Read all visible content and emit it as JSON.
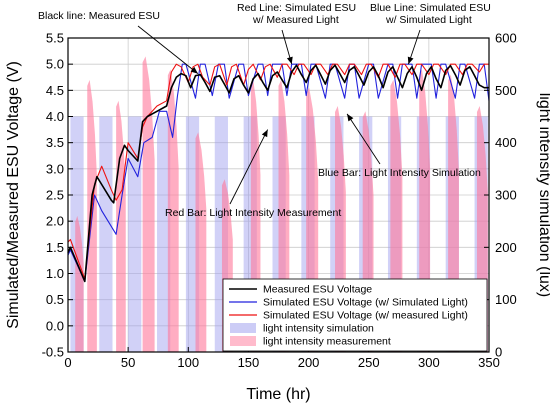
{
  "chart_data": {
    "type": "line",
    "xlabel": "Time (hr)",
    "ylabel": "Simulated/Measured ESU Voltage (V)",
    "y2label": "light intensity simulation (lux)",
    "xlim": [
      0,
      350
    ],
    "ylim": [
      -0.5,
      5.5
    ],
    "y2lim": [
      0,
      600
    ],
    "xticks": [
      0,
      50,
      100,
      150,
      200,
      250,
      300,
      350
    ],
    "yticks": [
      -0.5,
      0.0,
      0.5,
      1.0,
      1.5,
      2.0,
      2.5,
      3.0,
      3.5,
      4.0,
      4.5,
      5.0,
      5.5
    ],
    "y2ticks": [
      0,
      100,
      200,
      300,
      400,
      500,
      600
    ],
    "grid": true,
    "legend_position": "bottom-right",
    "series": [
      {
        "name": "Measured ESU Voltage",
        "color": "#000000",
        "axis": "left",
        "x": [
          0,
          2,
          14,
          20,
          24,
          28,
          36,
          38,
          43,
          47,
          50,
          58,
          62,
          66,
          74,
          82,
          86,
          90,
          94,
          98,
          102,
          106,
          110,
          114,
          118,
          122,
          126,
          130,
          134,
          138,
          142,
          146,
          150,
          154,
          158,
          162,
          166,
          170,
          174,
          178,
          182,
          186,
          190,
          194,
          198,
          202,
          206,
          210,
          214,
          218,
          222,
          226,
          230,
          234,
          238,
          242,
          246,
          250,
          254,
          258,
          262,
          266,
          270,
          274,
          278,
          282,
          286,
          290,
          294,
          298,
          302,
          306,
          310,
          314,
          318,
          322,
          326,
          330,
          334,
          338,
          342,
          346,
          350
        ],
        "y": [
          1.4,
          1.5,
          0.85,
          2.5,
          2.85,
          2.7,
          2.4,
          2.35,
          3.2,
          3.45,
          3.35,
          3.15,
          3.9,
          4.0,
          4.1,
          4.2,
          4.55,
          4.75,
          4.82,
          4.78,
          4.55,
          4.78,
          4.8,
          4.65,
          4.48,
          4.75,
          4.78,
          4.62,
          4.45,
          4.72,
          4.78,
          4.6,
          4.45,
          4.72,
          4.82,
          4.65,
          4.5,
          4.78,
          4.85,
          4.7,
          4.55,
          4.85,
          4.98,
          4.8,
          4.65,
          4.88,
          4.98,
          4.8,
          4.62,
          4.88,
          4.98,
          4.82,
          4.65,
          4.88,
          4.95,
          4.78,
          4.6,
          4.85,
          4.95,
          4.78,
          4.55,
          4.85,
          4.95,
          4.75,
          4.55,
          4.82,
          4.95,
          4.75,
          4.5,
          4.82,
          4.95,
          4.72,
          4.55,
          4.88,
          4.97,
          4.8,
          4.6,
          4.88,
          4.95,
          4.78,
          4.6,
          4.55,
          4.55
        ]
      },
      {
        "name": "Simulated ESU Voltage (w/ Simulated Light)",
        "color": "#2222dd",
        "axis": "left",
        "x": [
          0,
          2,
          14,
          22,
          28,
          40,
          45,
          50,
          58,
          63,
          70,
          76,
          82,
          87,
          91,
          95,
          98,
          106,
          110,
          114,
          120,
          125,
          130,
          134,
          142,
          146,
          150,
          158,
          162,
          166,
          170,
          178,
          182,
          186,
          194,
          198,
          202,
          206,
          214,
          218,
          222,
          230,
          234,
          238,
          242,
          250,
          254,
          258,
          266,
          270,
          274,
          278,
          286,
          290,
          294,
          302,
          306,
          310,
          314,
          322,
          326,
          330,
          338,
          342,
          346,
          350
        ],
        "y": [
          1.35,
          1.45,
          0.85,
          2.5,
          2.2,
          1.75,
          2.5,
          3.2,
          2.85,
          3.5,
          3.6,
          4.1,
          4.1,
          3.6,
          4.4,
          5.0,
          5.0,
          4.35,
          5.0,
          5.0,
          4.4,
          5.0,
          5.0,
          4.35,
          5.0,
          5.0,
          4.4,
          5.0,
          5.0,
          4.4,
          5.0,
          5.0,
          4.4,
          5.0,
          5.0,
          4.4,
          5.0,
          5.0,
          4.35,
          5.0,
          5.0,
          4.35,
          5.0,
          5.0,
          4.35,
          5.0,
          5.0,
          4.35,
          5.0,
          5.0,
          4.35,
          5.0,
          5.0,
          4.35,
          5.0,
          5.0,
          4.35,
          5.0,
          5.0,
          4.35,
          5.0,
          5.0,
          4.35,
          5.0,
          5.0,
          4.3
        ]
      },
      {
        "name": "Simulated ESU Voltage (w/ measured Light)",
        "color": "#ee1111",
        "axis": "left",
        "x": [
          0,
          2,
          14,
          22,
          28,
          36,
          40,
          45,
          50,
          58,
          62,
          66,
          74,
          82,
          86,
          90,
          94,
          100,
          104,
          108,
          112,
          118,
          122,
          126,
          132,
          136,
          140,
          146,
          150,
          154,
          160,
          164,
          168,
          174,
          178,
          182,
          188,
          192,
          196,
          202,
          206,
          210,
          216,
          220,
          224,
          230,
          234,
          238,
          244,
          248,
          252,
          258,
          262,
          266,
          272,
          276,
          280,
          286,
          290,
          294,
          300,
          304,
          308,
          314,
          318,
          322,
          328,
          332,
          336,
          342,
          346,
          350
        ],
        "y": [
          1.6,
          1.65,
          0.9,
          2.7,
          3.05,
          2.6,
          2.4,
          2.6,
          3.5,
          3.2,
          3.8,
          4.0,
          4.2,
          4.3,
          4.85,
          5.0,
          4.95,
          4.65,
          4.95,
          5.0,
          4.75,
          4.6,
          4.95,
          5.0,
          4.6,
          4.95,
          5.0,
          4.6,
          4.9,
          5.0,
          4.7,
          4.95,
          5.0,
          4.75,
          5.0,
          5.0,
          4.8,
          5.0,
          5.0,
          4.8,
          5.0,
          5.0,
          4.8,
          5.0,
          5.0,
          4.8,
          5.0,
          5.0,
          4.8,
          5.0,
          5.0,
          4.75,
          5.0,
          5.0,
          4.75,
          5.0,
          5.0,
          4.8,
          5.0,
          5.0,
          4.8,
          5.0,
          5.0,
          4.8,
          5.0,
          5.0,
          4.8,
          5.0,
          5.0,
          4.85,
          5.0,
          5.0
        ]
      },
      {
        "name": "light intensity simulation",
        "color": "#9999ee",
        "axis": "right",
        "kind": "bar",
        "intervals": [
          [
            2,
            13,
            450
          ],
          [
            26,
            37,
            450
          ],
          [
            50,
            61,
            450
          ],
          [
            74,
            85,
            450
          ],
          [
            98,
            109,
            450
          ],
          [
            122,
            133,
            450
          ],
          [
            146,
            157,
            450
          ],
          [
            170,
            181,
            450
          ],
          [
            194,
            205,
            450
          ],
          [
            218,
            229,
            450
          ],
          [
            242,
            253,
            450
          ],
          [
            266,
            277,
            450
          ],
          [
            290,
            301,
            450
          ],
          [
            314,
            325,
            450
          ],
          [
            338,
            349,
            450
          ]
        ]
      },
      {
        "name": "light intensity measurement",
        "color": "#ff7799",
        "axis": "right",
        "kind": "bar",
        "intervals": [
          [
            6,
            13,
            260
          ],
          [
            16,
            24,
            520
          ],
          [
            40,
            48,
            480
          ],
          [
            62,
            72,
            565
          ],
          [
            83,
            92,
            540
          ],
          [
            106,
            115,
            420
          ],
          [
            128,
            137,
            330
          ],
          [
            152,
            160,
            520
          ],
          [
            175,
            184,
            520
          ],
          [
            198,
            208,
            505
          ],
          [
            222,
            231,
            470
          ],
          [
            245,
            254,
            460
          ],
          [
            268,
            278,
            520
          ],
          [
            292,
            301,
            540
          ],
          [
            316,
            325,
            530
          ],
          [
            340,
            349,
            470
          ]
        ]
      }
    ],
    "annotations": [
      {
        "line1": "Black line: Measured ESU",
        "line2": ""
      },
      {
        "line1": "Red Line: Simulated ESU",
        "line2": "w/ Measured Light"
      },
      {
        "line1": "Blue Line: Simulated ESU",
        "line2": "w/ Simulated Light"
      },
      {
        "line1": "Blue Bar: Light Intensity Simulation",
        "line2": ""
      },
      {
        "line1": "Red Bar: Light Intensity Measurement",
        "line2": ""
      }
    ]
  }
}
